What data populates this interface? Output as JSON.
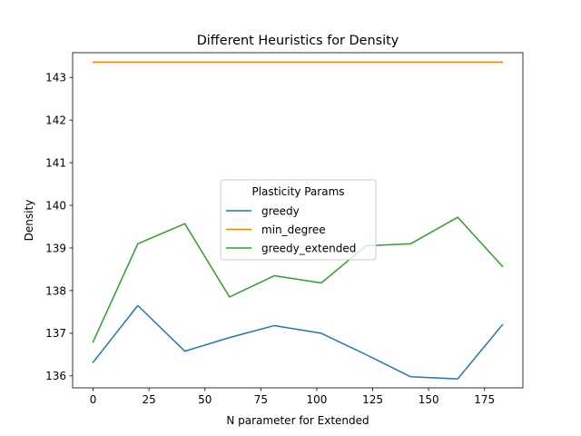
{
  "chart_data": {
    "type": "line",
    "title": "Different Heuristics for Density",
    "xlabel": "N parameter for Extended",
    "ylabel": "Density",
    "xlim": [
      -9.15,
      192.15
    ],
    "ylim": [
      135.72,
      143.58
    ],
    "x": [
      0,
      20,
      41,
      61,
      81,
      102,
      122,
      142,
      163,
      183
    ],
    "xticks": [
      0,
      25,
      50,
      75,
      100,
      125,
      150,
      175
    ],
    "yticks": [
      136,
      137,
      138,
      139,
      140,
      141,
      142,
      143
    ],
    "grid": false,
    "legend": {
      "title": "Plasticity Params",
      "placement": "center"
    },
    "series": [
      {
        "name": "greedy",
        "color": "#1f77b4",
        "values": [
          136.32,
          137.65,
          136.58,
          136.9,
          137.18,
          137.0,
          136.5,
          135.98,
          135.93,
          137.2
        ]
      },
      {
        "name": "min_degree",
        "color": "#ff7f0e",
        "values": [
          143.36,
          143.36,
          143.36,
          143.36,
          143.36,
          143.36,
          143.36,
          143.36,
          143.36,
          143.36
        ]
      },
      {
        "name": "greedy_extended",
        "color": "#2ca02c",
        "values": [
          136.8,
          139.1,
          139.57,
          137.85,
          138.35,
          138.18,
          139.05,
          139.1,
          139.72,
          138.57
        ]
      }
    ]
  }
}
